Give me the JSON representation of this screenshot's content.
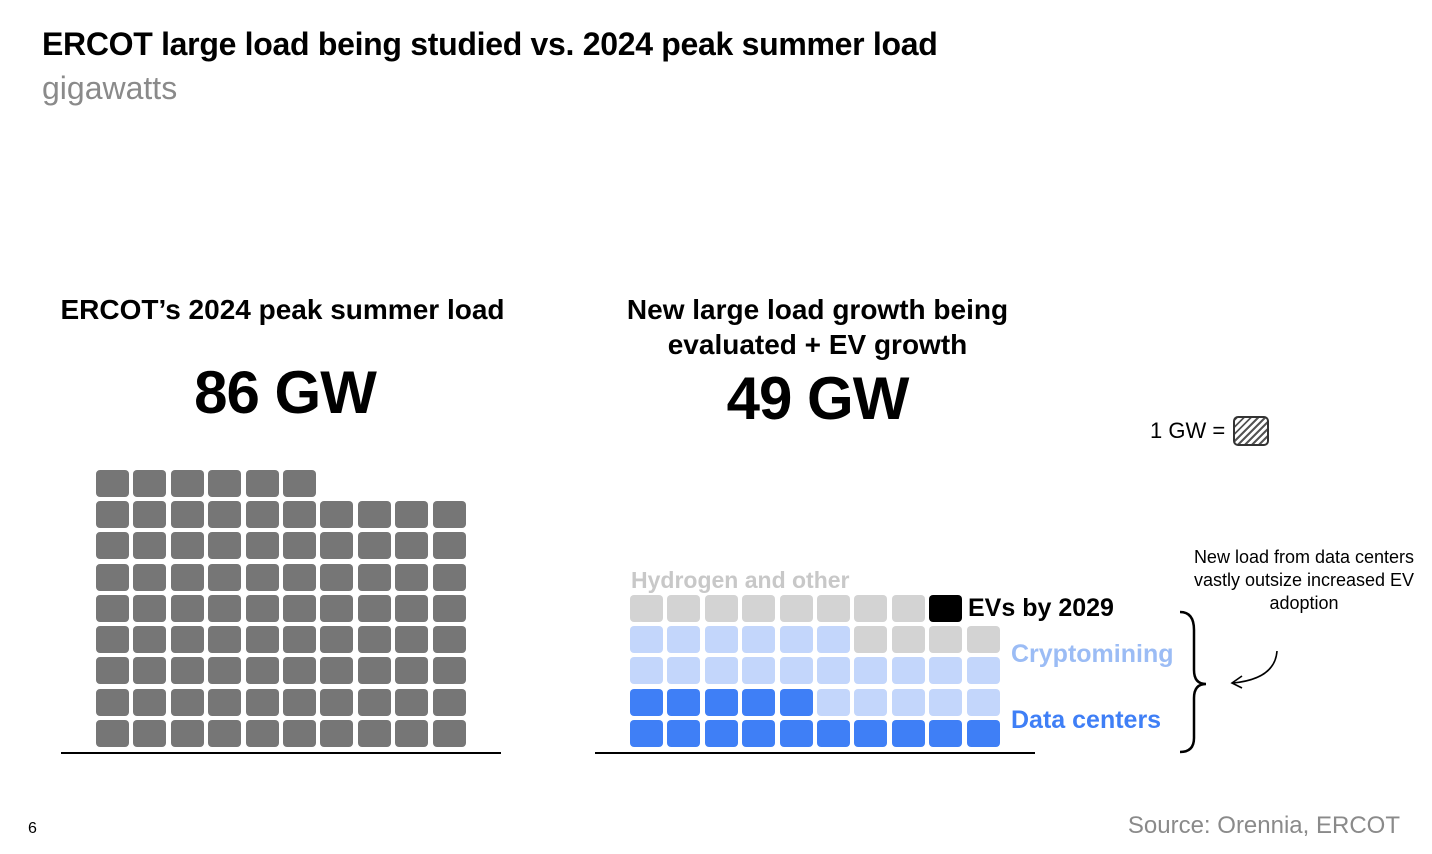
{
  "title": "ERCOT large load being studied vs. 2024 peak summer load",
  "subtitle": "gigawatts",
  "left_panel": {
    "heading": "ERCOT’s 2024 peak summer load",
    "value": "86 GW"
  },
  "right_panel": {
    "heading_line1": "New large load growth being",
    "heading_line2": "evaluated + EV growth",
    "value": "49 GW"
  },
  "legend": {
    "label": "1 GW ="
  },
  "note": "New load from data centers vastly outsize increased EV adoption",
  "source": "Source: Orennia, ERCOT",
  "page_number": "6",
  "colors": {
    "peak": "#767676",
    "data_centers": "#3f7ff6",
    "cryptomining": "#c3d6fb",
    "hydrogen_other": "#d3d3d3",
    "evs": "#000000",
    "crypto_label": "#9bbcf5",
    "hydrogen_label": "#c8c8c8"
  },
  "chart_data": [
    {
      "type": "waffle",
      "title": "ERCOT’s 2024 peak summer load",
      "unit": "GW",
      "series": [
        {
          "name": "",
          "value": 86
        }
      ]
    },
    {
      "type": "waffle",
      "title": "New large load growth being evaluated + EV growth",
      "unit": "GW",
      "total": 49,
      "series": [
        {
          "name": "Data centers",
          "value": 15
        },
        {
          "name": "Cryptomining",
          "value": 21
        },
        {
          "name": "Hydrogen and other",
          "value": 12
        },
        {
          "name": "EVs by 2029",
          "value": 1
        }
      ]
    }
  ]
}
